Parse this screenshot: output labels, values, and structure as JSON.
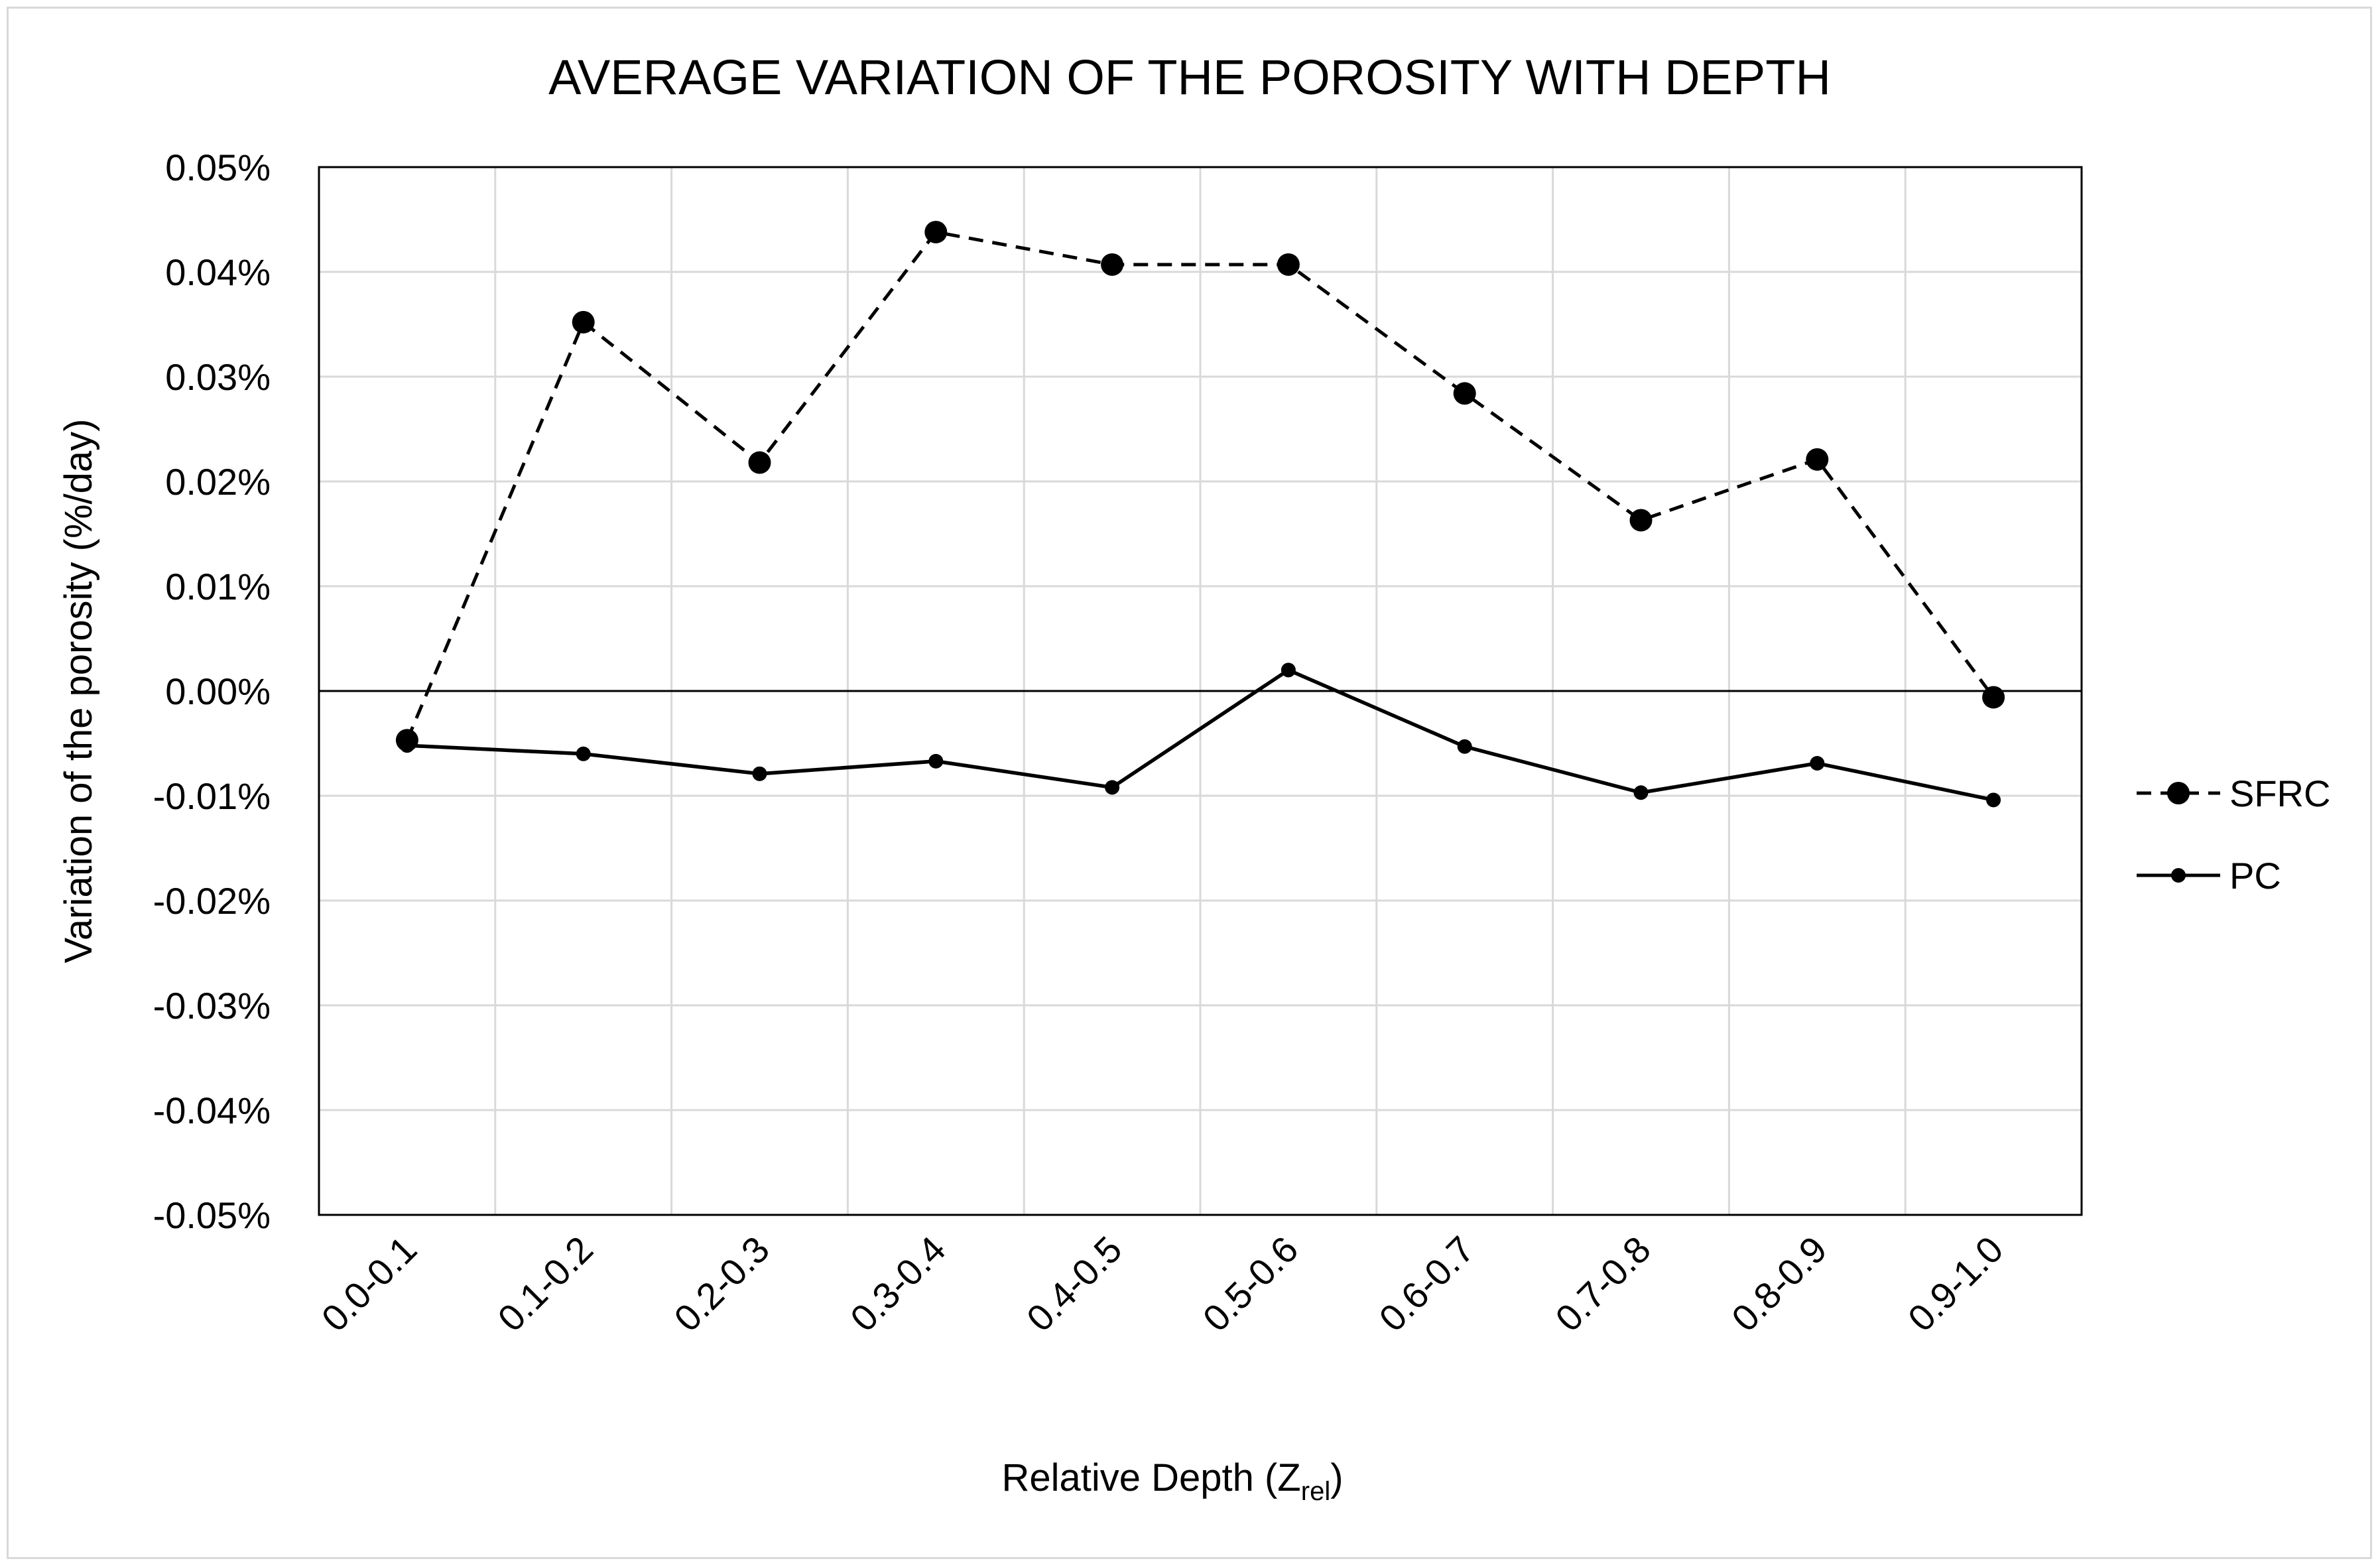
{
  "chart_data": {
    "type": "line",
    "title": "AVERAGE VARIATION OF THE POROSITY WITH DEPTH",
    "xlabel": {
      "main": "Relative Depth (Z",
      "subscript": "rel",
      "suffix": ")"
    },
    "ylabel": "Variation of the porosity (%/day)",
    "categories": [
      "0.0-0.1",
      "0.1-0.2",
      "0.2-0.3",
      "0.3-0.4",
      "0.4-0.5",
      "0.5-0.6",
      "0.6-0.7",
      "0.7-0.8",
      "0.8-0.9",
      "0.9-1.0"
    ],
    "ylim": [
      -0.05,
      0.05
    ],
    "yticks": [
      0.05,
      0.04,
      0.03,
      0.02,
      0.01,
      0.0,
      -0.01,
      -0.02,
      -0.03,
      -0.04,
      -0.05
    ],
    "ytick_labels": [
      "0.05%",
      "0.04%",
      "0.03%",
      "0.02%",
      "0.01%",
      "0.00%",
      "-0.01%",
      "-0.02%",
      "-0.03%",
      "-0.04%",
      "-0.05%"
    ],
    "y_unit": "%",
    "grid": true,
    "legend_position": "right",
    "series": [
      {
        "name": "SFRC",
        "line_style": "dashed",
        "marker": "large-circle",
        "color": "#000000",
        "values": [
          -0.0047,
          0.0352,
          0.0218,
          0.0438,
          0.0407,
          0.0407,
          0.0284,
          0.0163,
          0.0221,
          -0.0006
        ]
      },
      {
        "name": "PC",
        "line_style": "solid",
        "marker": "small-circle",
        "color": "#000000",
        "values": [
          -0.0052,
          -0.006,
          -0.0079,
          -0.0067,
          -0.0092,
          0.002,
          -0.0053,
          -0.0097,
          -0.0069,
          -0.0104
        ]
      }
    ]
  },
  "colors": {
    "gridline": "#d9d9d9",
    "plot_border": "#000000",
    "zero_line": "#000000",
    "frame_border": "#d9d9d9"
  }
}
